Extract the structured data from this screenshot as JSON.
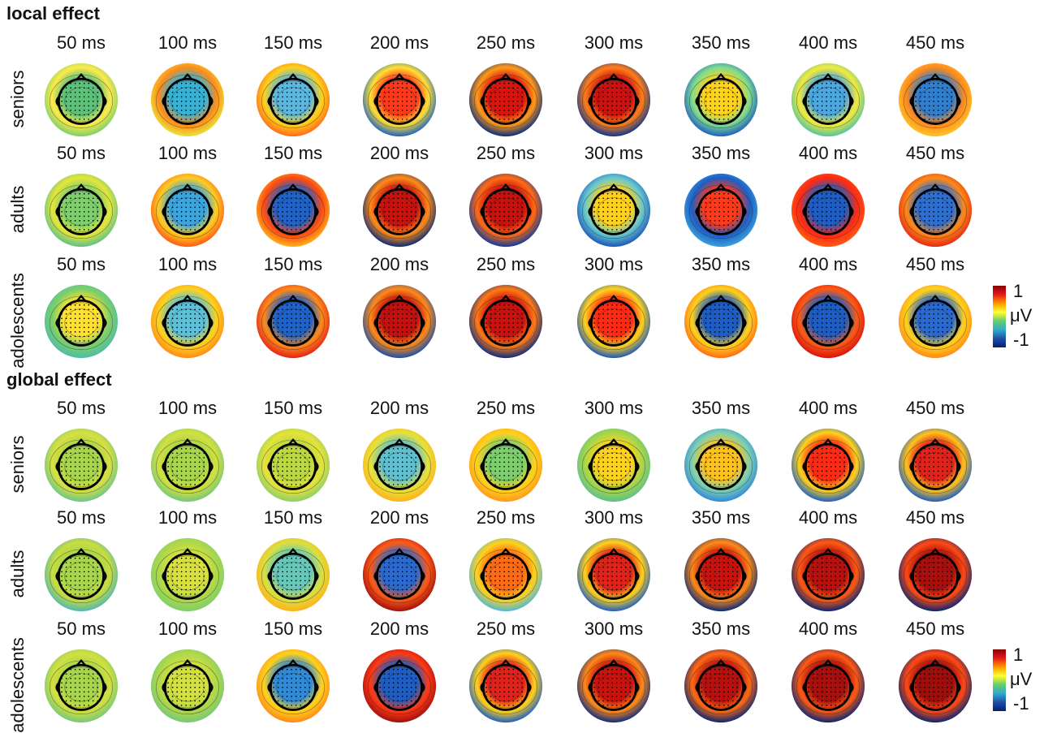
{
  "sections": [
    {
      "title": "local effect",
      "colorbar": {
        "max_label": "1",
        "unit": "μV",
        "min_label": "-1"
      },
      "groups": [
        {
          "name": "seniors",
          "times": [
            "50 ms",
            "100 ms",
            "150 ms",
            "200 ms",
            "250 ms",
            "300 ms",
            "350 ms",
            "400 ms",
            "450 ms"
          ],
          "maps": [
            {
              "center": "#5cc27a",
              "rim": "#7ccf6a",
              "band": "#ffea4a"
            },
            {
              "center": "#35b3d6",
              "rim": "#e9e33a",
              "band": "#ff8c1a"
            },
            {
              "center": "#5ab7e0",
              "rim": "#ff6a1a",
              "band": "#ffd11a"
            },
            {
              "center": "#ff3a1a",
              "rim": "#1e62c0",
              "band": "#ffe033"
            },
            {
              "center": "#d8140f",
              "rim": "#0b2c7e",
              "band": "#ff9a18"
            },
            {
              "center": "#cc1210",
              "rim": "#0d3690",
              "band": "#ff7e18"
            },
            {
              "center": "#ffd21c",
              "rim": "#1d5fbf",
              "band": "#7fdc8f"
            },
            {
              "center": "#4aa8e0",
              "rim": "#52c4a0",
              "band": "#f5ea3a"
            },
            {
              "center": "#2f7fd0",
              "rim": "#ffc42a",
              "band": "#ff8a1c"
            }
          ]
        },
        {
          "name": "adults",
          "times": [
            "50 ms",
            "100 ms",
            "150 ms",
            "200 ms",
            "250 ms",
            "300 ms",
            "350 ms",
            "400 ms",
            "450 ms"
          ],
          "maps": [
            {
              "center": "#7ccf6a",
              "rim": "#5ec08a",
              "band": "#e6e63a"
            },
            {
              "center": "#3aa6e0",
              "rim": "#ff5a14",
              "band": "#ffcc22"
            },
            {
              "center": "#1f62c8",
              "rim": "#ffb21a",
              "band": "#ff4a14"
            },
            {
              "center": "#c8120e",
              "rim": "#0a2b78",
              "band": "#ff8c18"
            },
            {
              "center": "#c6110e",
              "rim": "#113c98",
              "band": "#ff6a14"
            },
            {
              "center": "#ffd11c",
              "rim": "#1b56b8",
              "band": "#66c8d0"
            },
            {
              "center": "#ff3a1a",
              "rim": "#3aa0dc",
              "band": "#1e5ec4"
            },
            {
              "center": "#1e5ec4",
              "rim": "#ff5a14",
              "band": "#ff2a14"
            },
            {
              "center": "#2c6fd0",
              "rim": "#e02a14",
              "band": "#ff8a18"
            }
          ]
        },
        {
          "name": "adolescents",
          "times": [
            "50 ms",
            "100 ms",
            "150 ms",
            "200 ms",
            "250 ms",
            "300 ms",
            "350 ms",
            "400 ms",
            "450 ms"
          ],
          "maps": [
            {
              "center": "#ffe033",
              "rim": "#4fbca6",
              "band": "#7ccf6a"
            },
            {
              "center": "#5cc0d8",
              "rim": "#ff8a18",
              "band": "#ffd21c"
            },
            {
              "center": "#1f62c8",
              "rim": "#e0241a",
              "band": "#ff8a18"
            },
            {
              "center": "#c2110e",
              "rim": "#1a4ea8",
              "band": "#ff8a18"
            },
            {
              "center": "#c8120e",
              "rim": "#0c2c80",
              "band": "#ff7a14"
            },
            {
              "center": "#ff2a14",
              "rim": "#1d56b8",
              "band": "#ffd21c"
            },
            {
              "center": "#1e5ec4",
              "rim": "#ff6a14",
              "band": "#ffd21c"
            },
            {
              "center": "#1e5ec4",
              "rim": "#d8140f",
              "band": "#ff5a14"
            },
            {
              "center": "#2a6ad0",
              "rim": "#ff8a18",
              "band": "#ffd21c"
            }
          ]
        }
      ]
    },
    {
      "title": "global effect",
      "colorbar": {
        "max_label": "1",
        "unit": "μV",
        "min_label": "-1"
      },
      "groups": [
        {
          "name": "seniors",
          "times": [
            "50 ms",
            "100 ms",
            "150 ms",
            "200 ms",
            "250 ms",
            "300 ms",
            "350 ms",
            "400 ms",
            "450 ms"
          ],
          "maps": [
            {
              "center": "#a8d64a",
              "rim": "#6cc68a",
              "band": "#d8e040"
            },
            {
              "center": "#a8d64a",
              "rim": "#78c878",
              "band": "#d2e040"
            },
            {
              "center": "#bcd840",
              "rim": "#8ccf6a",
              "band": "#e6e23a"
            },
            {
              "center": "#5ec0d0",
              "rim": "#ffb21a",
              "band": "#e6e23a"
            },
            {
              "center": "#7ccf6a",
              "rim": "#ff9a1a",
              "band": "#ffd21c"
            },
            {
              "center": "#ffd21c",
              "rim": "#5ec08a",
              "band": "#a8d64a"
            },
            {
              "center": "#ffc21c",
              "rim": "#2f8ad8",
              "band": "#7fd0b0"
            },
            {
              "center": "#ff2a14",
              "rim": "#1e5ec4",
              "band": "#ffd21c"
            },
            {
              "center": "#e0221a",
              "rim": "#1e5ec4",
              "band": "#ffc21c"
            }
          ]
        },
        {
          "name": "adults",
          "times": [
            "50 ms",
            "100 ms",
            "150 ms",
            "200 ms",
            "250 ms",
            "300 ms",
            "350 ms",
            "400 ms",
            "450 ms"
          ],
          "maps": [
            {
              "center": "#a8d64a",
              "rim": "#50b8b0",
              "band": "#c8dc40"
            },
            {
              "center": "#d8e040",
              "rim": "#7ccf6a",
              "band": "#b0d84a"
            },
            {
              "center": "#66c8b8",
              "rim": "#ffb21a",
              "band": "#d8e040"
            },
            {
              "center": "#2a6ad0",
              "rim": "#a01010",
              "band": "#ff5a14"
            },
            {
              "center": "#ff6a14",
              "rim": "#52b8d8",
              "band": "#ffd21c"
            },
            {
              "center": "#e0221a",
              "rim": "#1e5ec4",
              "band": "#ffd21c"
            },
            {
              "center": "#c8120e",
              "rim": "#0a2b78",
              "band": "#ff8a18"
            },
            {
              "center": "#b8100e",
              "rim": "#0a2670",
              "band": "#ff5a14"
            },
            {
              "center": "#a80f0d",
              "rim": "#0a2670",
              "band": "#ff4a14"
            }
          ]
        },
        {
          "name": "adolescents",
          "times": [
            "50 ms",
            "100 ms",
            "150 ms",
            "200 ms",
            "250 ms",
            "300 ms",
            "350 ms",
            "400 ms",
            "450 ms"
          ],
          "maps": [
            {
              "center": "#a8d64a",
              "rim": "#78c878",
              "band": "#d2e040"
            },
            {
              "center": "#d2e040",
              "rim": "#78c878",
              "band": "#b0d84a"
            },
            {
              "center": "#2f8ad8",
              "rim": "#ff8a18",
              "band": "#ffd21c"
            },
            {
              "center": "#1e5ec4",
              "rim": "#a01010",
              "band": "#ff3a14"
            },
            {
              "center": "#e0221a",
              "rim": "#1e5ec4",
              "band": "#ffd21c"
            },
            {
              "center": "#c8120e",
              "rim": "#0c2c80",
              "band": "#ff8a18"
            },
            {
              "center": "#b8100e",
              "rim": "#0a2670",
              "band": "#ff6a14"
            },
            {
              "center": "#a80f0d",
              "rim": "#0a2670",
              "band": "#ff5a14"
            },
            {
              "center": "#a00e0c",
              "rim": "#0a2670",
              "band": "#ff4a14"
            }
          ]
        }
      ]
    }
  ]
}
